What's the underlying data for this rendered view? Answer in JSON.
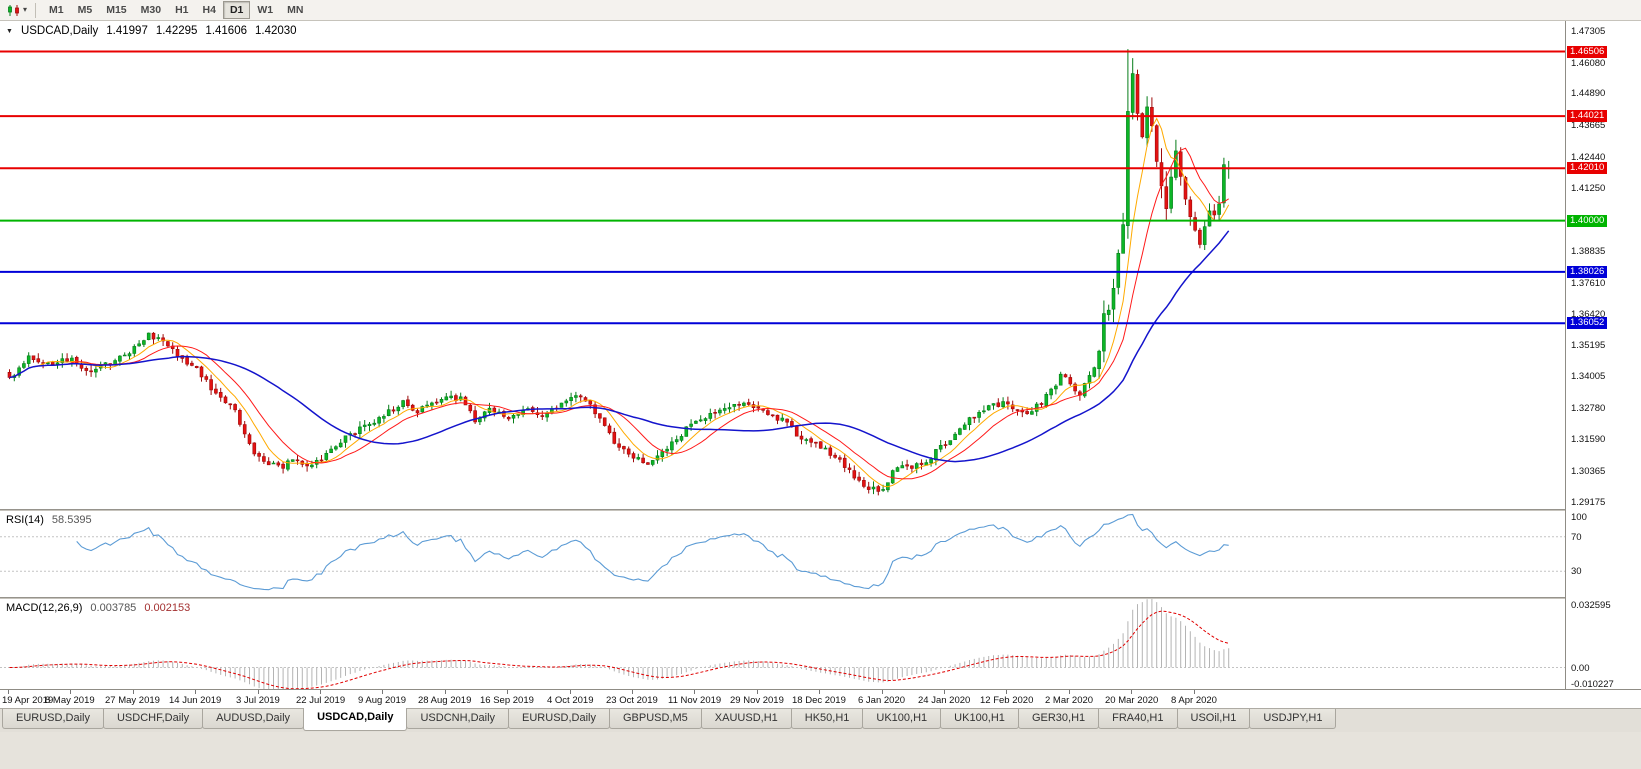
{
  "icons": {
    "dropdown_caret": "▾",
    "collapse_triangle": "▼"
  },
  "toolbar": {
    "timeframes": [
      {
        "label": "M1",
        "active": false
      },
      {
        "label": "M5",
        "active": false
      },
      {
        "label": "M15",
        "active": false
      },
      {
        "label": "M30",
        "active": false
      },
      {
        "label": "H1",
        "active": false
      },
      {
        "label": "H4",
        "active": false
      },
      {
        "label": "D1",
        "active": true
      },
      {
        "label": "W1",
        "active": false
      },
      {
        "label": "MN",
        "active": false
      }
    ]
  },
  "chart_header": {
    "symbol_period": "USDCAD,Daily",
    "open": "1.41997",
    "high": "1.42295",
    "low": "1.41606",
    "close": "1.42030"
  },
  "price_axis": {
    "ticks": [
      "1.47305",
      "1.46080",
      "1.44890",
      "1.43665",
      "1.42440",
      "1.41250",
      "1.38835",
      "1.37610",
      "1.36420",
      "1.35195",
      "1.34005",
      "1.32780",
      "1.31590",
      "1.30365",
      "1.29175"
    ],
    "badges": [
      {
        "value": "1.46506",
        "color": "#e80000"
      },
      {
        "value": "1.44021",
        "color": "#e80000"
      },
      {
        "value": "1.42010",
        "color": "#e80000"
      },
      {
        "value": "1.40000",
        "color": "#00b400"
      },
      {
        "value": "1.38026",
        "color": "#0000d8"
      },
      {
        "value": "1.36052",
        "color": "#0000d8"
      }
    ]
  },
  "time_axis": {
    "labels": [
      "19 Apr 2019",
      "8 May 2019",
      "27 May 2019",
      "14 Jun 2019",
      "3 Jul 2019",
      "22 Jul 2019",
      "9 Aug 2019",
      "28 Aug 2019",
      "16 Sep 2019",
      "4 Oct 2019",
      "23 Oct 2019",
      "11 Nov 2019",
      "29 Nov 2019",
      "18 Dec 2019",
      "6 Jan 2020",
      "24 Jan 2020",
      "12 Feb 2020",
      "2 Mar 2020",
      "20 Mar 2020",
      "8 Apr 2020"
    ]
  },
  "rsi_pane": {
    "label": "RSI(14)",
    "value": "58.5395",
    "axis_labels": [
      "100",
      "70",
      "30"
    ],
    "levels": [
      70,
      30
    ],
    "line_color": "#5b9bd5"
  },
  "macd_pane": {
    "label": "MACD(12,26,9)",
    "main_value": "0.003785",
    "signal_value": "0.002153",
    "axis_labels": [
      "0.032595",
      "0.00",
      "-0.010227"
    ],
    "histogram_color": "#b4b4b4",
    "signal_color": "#e00000"
  },
  "tabbar": {
    "tabs": [
      {
        "label": "EURUSD,Daily",
        "active": false
      },
      {
        "label": "USDCHF,Daily",
        "active": false
      },
      {
        "label": "AUDUSD,Daily",
        "active": false
      },
      {
        "label": "USDCAD,Daily",
        "active": true
      },
      {
        "label": "USDCNH,Daily",
        "active": false
      },
      {
        "label": "EURUSD,Daily",
        "active": false
      },
      {
        "label": "GBPUSD,M5",
        "active": false
      },
      {
        "label": "XAUUSD,H1",
        "active": false
      },
      {
        "label": "HK50,H1",
        "active": false
      },
      {
        "label": "UK100,H1",
        "active": false
      },
      {
        "label": "UK100,H1",
        "active": false
      },
      {
        "label": "GER30,H1",
        "active": false
      },
      {
        "label": "FRA40,H1",
        "active": false
      },
      {
        "label": "USOil,H1",
        "active": false
      },
      {
        "label": "USDJPY,H1",
        "active": false
      }
    ]
  },
  "chart_data": {
    "type": "candlestick",
    "symbol": "USDCAD",
    "period": "Daily",
    "last_ohlc": {
      "open": 1.41997,
      "high": 1.42295,
      "low": 1.41606,
      "close": 1.4203
    },
    "visible_price_range": [
      1.29175,
      1.47305
    ],
    "candle_count": 255,
    "bars_per_label": 13,
    "y_range": {
      "top": 1.4768,
      "bottom": 1.289
    },
    "noise_seed": 1337,
    "colors": {
      "up_fill": "#0cb527",
      "up_stroke": "#067d19",
      "down_fill": "#e31212",
      "down_stroke": "#9e0b0b"
    },
    "close_anchors": [
      [
        0,
        1.339
      ],
      [
        4,
        1.3475
      ],
      [
        9,
        1.345
      ],
      [
        13,
        1.3465
      ],
      [
        17,
        1.342
      ],
      [
        21,
        1.345
      ],
      [
        26,
        1.3505
      ],
      [
        29,
        1.3555
      ],
      [
        32,
        1.3545
      ],
      [
        35,
        1.3475
      ],
      [
        39,
        1.343
      ],
      [
        43,
        1.333
      ],
      [
        47,
        1.327
      ],
      [
        50,
        1.313
      ],
      [
        52,
        1.3085
      ],
      [
        56,
        1.305
      ],
      [
        59,
        1.3075
      ],
      [
        62,
        1.3055
      ],
      [
        65,
        1.3085
      ],
      [
        69,
        1.3155
      ],
      [
        73,
        1.32
      ],
      [
        78,
        1.3245
      ],
      [
        82,
        1.3305
      ],
      [
        85,
        1.327
      ],
      [
        88,
        1.33
      ],
      [
        91,
        1.331
      ],
      [
        94,
        1.332
      ],
      [
        97,
        1.3235
      ],
      [
        100,
        1.327
      ],
      [
        104,
        1.3245
      ],
      [
        108,
        1.327
      ],
      [
        111,
        1.3245
      ],
      [
        114,
        1.329
      ],
      [
        117,
        1.332
      ],
      [
        120,
        1.3305
      ],
      [
        123,
        1.3245
      ],
      [
        126,
        1.3145
      ],
      [
        130,
        1.3085
      ],
      [
        133,
        1.306
      ],
      [
        136,
        1.31
      ],
      [
        139,
        1.316
      ],
      [
        143,
        1.323
      ],
      [
        147,
        1.326
      ],
      [
        151,
        1.3295
      ],
      [
        156,
        1.3285
      ],
      [
        159,
        1.3255
      ],
      [
        162,
        1.3215
      ],
      [
        165,
        1.3165
      ],
      [
        169,
        1.313
      ],
      [
        172,
        1.3095
      ],
      [
        175,
        1.3035
      ],
      [
        178,
        1.298
      ],
      [
        182,
        1.2965
      ],
      [
        184,
        1.304
      ],
      [
        187,
        1.3055
      ],
      [
        190,
        1.306
      ],
      [
        193,
        1.311
      ],
      [
        195,
        1.314
      ],
      [
        198,
        1.32
      ],
      [
        201,
        1.325
      ],
      [
        204,
        1.328
      ],
      [
        208,
        1.33
      ],
      [
        211,
        1.3255
      ],
      [
        214,
        1.3285
      ],
      [
        217,
        1.334
      ],
      [
        219,
        1.34
      ],
      [
        221,
        1.338
      ],
      [
        223,
        1.333
      ],
      [
        225,
        1.34
      ],
      [
        227,
        1.348
      ],
      [
        228,
        1.362
      ],
      [
        230,
        1.374
      ],
      [
        231,
        1.386
      ],
      [
        232,
        1.398
      ],
      [
        233,
        1.442
      ],
      [
        234,
        1.454
      ],
      [
        235,
        1.443
      ],
      [
        236,
        1.431
      ],
      [
        237,
        1.444
      ],
      [
        238,
        1.435
      ],
      [
        239,
        1.421
      ],
      [
        240,
        1.411
      ],
      [
        241,
        1.406
      ],
      [
        242,
        1.416
      ],
      [
        243,
        1.426
      ],
      [
        244,
        1.419
      ],
      [
        245,
        1.408
      ],
      [
        246,
        1.402
      ],
      [
        247,
        1.396
      ],
      [
        248,
        1.392
      ],
      [
        249,
        1.399
      ],
      [
        250,
        1.404
      ],
      [
        251,
        1.4005
      ],
      [
        252,
        1.407
      ],
      [
        253,
        1.4215
      ],
      [
        254,
        1.4203
      ]
    ],
    "special_candles": {
      "233": [
        1.398,
        1.466,
        1.393,
        1.442
      ],
      "253": [
        1.4068,
        1.4242,
        1.405,
        1.4215
      ],
      "254": [
        1.41997,
        1.42295,
        1.41606,
        1.4203
      ]
    },
    "moving_averages": [
      {
        "name": "ma-fast",
        "period": 7,
        "color": "#ffaa00",
        "width": 1
      },
      {
        "name": "ma-mid",
        "period": 13,
        "color": "#ff1a1a",
        "width": 1
      },
      {
        "name": "ma-slow",
        "period": 34,
        "color": "#1414cc",
        "width": 1.5
      }
    ],
    "horizontal_lines": [
      {
        "price": 1.46506,
        "color": "#e80000"
      },
      {
        "price": 1.44021,
        "color": "#e80000"
      },
      {
        "price": 1.4201,
        "color": "#e80000"
      },
      {
        "price": 1.4,
        "color": "#00b400"
      },
      {
        "price": 1.38026,
        "color": "#0000d8"
      },
      {
        "price": 1.36052,
        "color": "#0000d8"
      }
    ],
    "rsi": {
      "period": 14,
      "last": 58.5395
    },
    "macd": {
      "fast": 12,
      "slow": 26,
      "signal": 9,
      "last_main": 0.003785,
      "last_signal": 0.002153,
      "axis_max": 0.032595,
      "axis_min": -0.010227
    }
  }
}
